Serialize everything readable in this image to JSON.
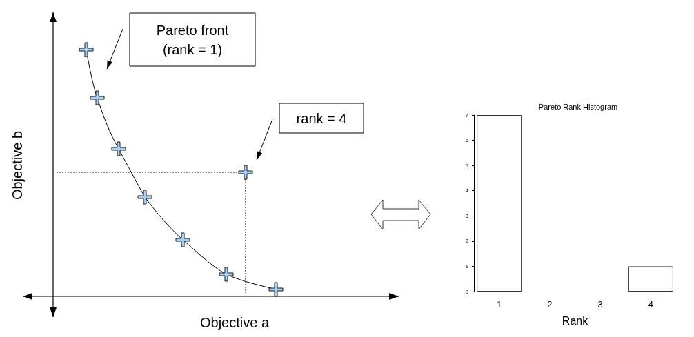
{
  "chart_data": [
    {
      "type": "other",
      "xlabel": "Objective a",
      "ylabel": "Objective b",
      "annotations": [
        "Pareto front\n(rank = 1)",
        "rank = 4"
      ]
    },
    {
      "type": "bar",
      "title": "Pareto Rank Histogram",
      "xlabel": "Rank",
      "categories": [
        "1",
        "2",
        "3",
        "4"
      ],
      "values": [
        7,
        0,
        0,
        1
      ],
      "color": "#ffffff",
      "ylim": [
        0,
        7
      ],
      "yticks": [
        0,
        1,
        2,
        3,
        4,
        5,
        6,
        7
      ],
      "grid": false
    }
  ]
}
